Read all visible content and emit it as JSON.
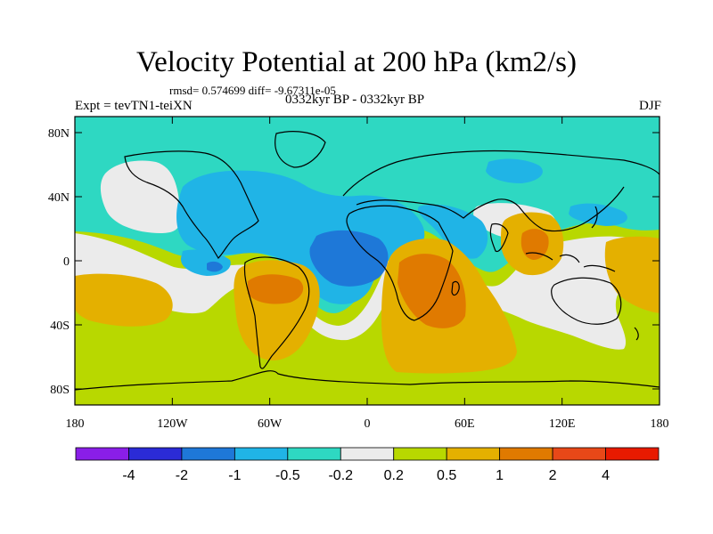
{
  "title": "Velocity Potential at 200 hPa (km2/s)",
  "stats": "rmsd= 0.574699 diff= -9.67311e-05",
  "left_label": "Expt = tevTN1-teiXN",
  "center_label": "0332kyr BP - 0332kyr BP",
  "right_label": "DJF",
  "y_ticks": [
    {
      "lat": 80,
      "label": "80N"
    },
    {
      "lat": 40,
      "label": "40N"
    },
    {
      "lat": 0,
      "label": "0"
    },
    {
      "lat": -40,
      "label": "40S"
    },
    {
      "lat": -80,
      "label": "80S"
    }
  ],
  "x_ticks": [
    {
      "lon": -180,
      "label": "180"
    },
    {
      "lon": -120,
      "label": "120W"
    },
    {
      "lon": -60,
      "label": "60W"
    },
    {
      "lon": 0,
      "label": "0"
    },
    {
      "lon": 60,
      "label": "60E"
    },
    {
      "lon": 120,
      "label": "120E"
    },
    {
      "lon": 180,
      "label": "180"
    }
  ],
  "colorbar": {
    "colors": [
      "#8a1ee8",
      "#2b2bd6",
      "#1e78d8",
      "#20b4e6",
      "#2ed8c2",
      "#ebebeb",
      "#b8d800",
      "#e4b000",
      "#e07a00",
      "#e84818",
      "#e81a00"
    ],
    "labels": [
      "-4",
      "-2",
      "-1",
      "-0.5",
      "-0.2",
      "0.2",
      "0.5",
      "1",
      "2",
      "4"
    ]
  }
}
